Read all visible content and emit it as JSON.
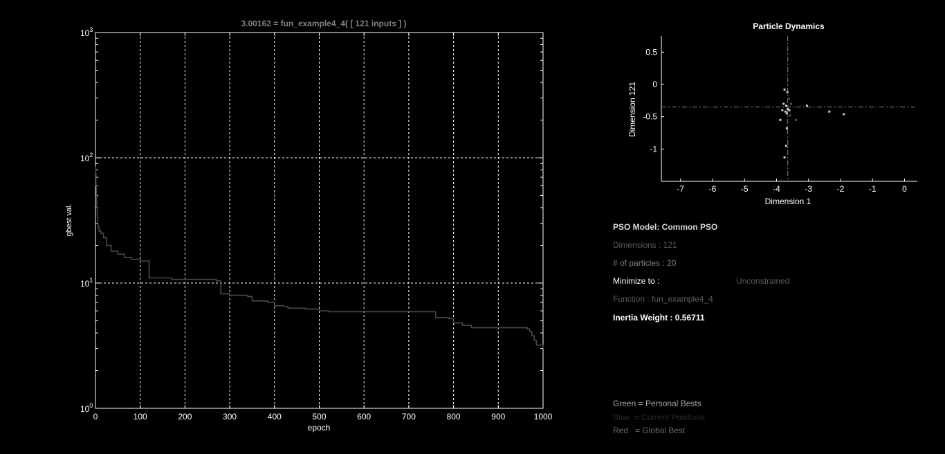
{
  "chart_data": [
    {
      "type": "line",
      "title": "3.00162 = fun_example4_4( [ 121 inputs ] )",
      "xlabel": "epoch",
      "ylabel": "gbest val.",
      "xlim": [
        0,
        1000
      ],
      "ylim": [
        1,
        1000
      ],
      "yscale": "log",
      "grid": true,
      "x_ticks": [
        "0",
        "100",
        "200",
        "300",
        "400",
        "500",
        "600",
        "700",
        "800",
        "900",
        "1000"
      ],
      "y_ticks": [
        {
          "base": "10",
          "exp": "0"
        },
        {
          "base": "10",
          "exp": "1"
        },
        {
          "base": "10",
          "exp": "2"
        },
        {
          "base": "10",
          "exp": "3"
        }
      ],
      "series": [
        {
          "color": "#4a4a4a",
          "step": true,
          "x": [
            0,
            0.5,
            1,
            2,
            3,
            4,
            5,
            6,
            8,
            12,
            18,
            25,
            35,
            50,
            65,
            80,
            100,
            115,
            120,
            170,
            270,
            280,
            300,
            340,
            350,
            385,
            400,
            420,
            430,
            470,
            500,
            520,
            600,
            680,
            760,
            790,
            800,
            820,
            840,
            960,
            965,
            970,
            975,
            980,
            985,
            1000
          ],
          "y": [
            85,
            75,
            60,
            50,
            40,
            34,
            30,
            28,
            26,
            25,
            23,
            20,
            18,
            17,
            16,
            15.5,
            15,
            15,
            11,
            10.7,
            10.4,
            8.2,
            8,
            7.8,
            7.2,
            7,
            6.6,
            6.5,
            6.3,
            6.2,
            6,
            5.9,
            5.9,
            5.9,
            5.3,
            5.2,
            4.8,
            4.6,
            4.4,
            4.4,
            4.3,
            4.1,
            3.8,
            3.5,
            3.2,
            3.0
          ]
        }
      ]
    },
    {
      "type": "scatter",
      "title": "Particle Dynamics",
      "xlabel": "Dimension 1",
      "ylabel": "Dimension 121",
      "xlim": [
        -7.6,
        0.4
      ],
      "ylim": [
        -1.5,
        0.75
      ],
      "grid": false,
      "x_ticks": [
        "-7",
        "-6",
        "-5",
        "-4",
        "-3",
        "-2",
        "-1",
        "0"
      ],
      "y_ticks": [
        "0.5",
        "0",
        "-0.5",
        "-1"
      ],
      "global_best": {
        "x": -3.65,
        "y": -0.35
      },
      "series": [
        {
          "color": "#cccccc",
          "points": [
            [
              -3.75,
              -0.08
            ],
            [
              -3.66,
              -0.12
            ],
            [
              -3.78,
              -0.3
            ],
            [
              -3.7,
              -0.33
            ],
            [
              -3.65,
              -0.38
            ],
            [
              -3.82,
              -0.4
            ],
            [
              -3.72,
              -0.42
            ],
            [
              -3.68,
              -0.45
            ],
            [
              -3.6,
              -0.4
            ],
            [
              -3.88,
              -0.55
            ],
            [
              -3.68,
              -0.68
            ],
            [
              -3.7,
              -0.95
            ],
            [
              -3.75,
              -1.13
            ],
            [
              -3.05,
              -0.33
            ],
            [
              -2.35,
              -0.42
            ],
            [
              -1.9,
              -0.46
            ],
            [
              -3.55,
              -0.3
            ],
            [
              -3.58,
              -0.48
            ],
            [
              -3.4,
              -0.55
            ],
            [
              -3.62,
              -0.22
            ]
          ]
        }
      ]
    }
  ],
  "info": {
    "model": "PSO Model: Common PSO",
    "dimensions": "Dimensions : 121",
    "particles": "# of particles : 20",
    "minimize_label": "Minimize to :",
    "minimize_value": "Unconstrained",
    "function": "Function : fun_example4_4",
    "inertia": "Inertia Weight : 0.56711"
  },
  "legend": {
    "green": "Green = Personal Bests",
    "blue": "Blue  = Current Positions",
    "red": "Red   = Global Best"
  },
  "colors": {
    "axis": "#ffffff",
    "grid": "#ffffff",
    "line": "#4a4a4a",
    "title_gray": "#808080",
    "dim_text": "#5a5a5a",
    "faint_text": "#2a2a2a"
  }
}
